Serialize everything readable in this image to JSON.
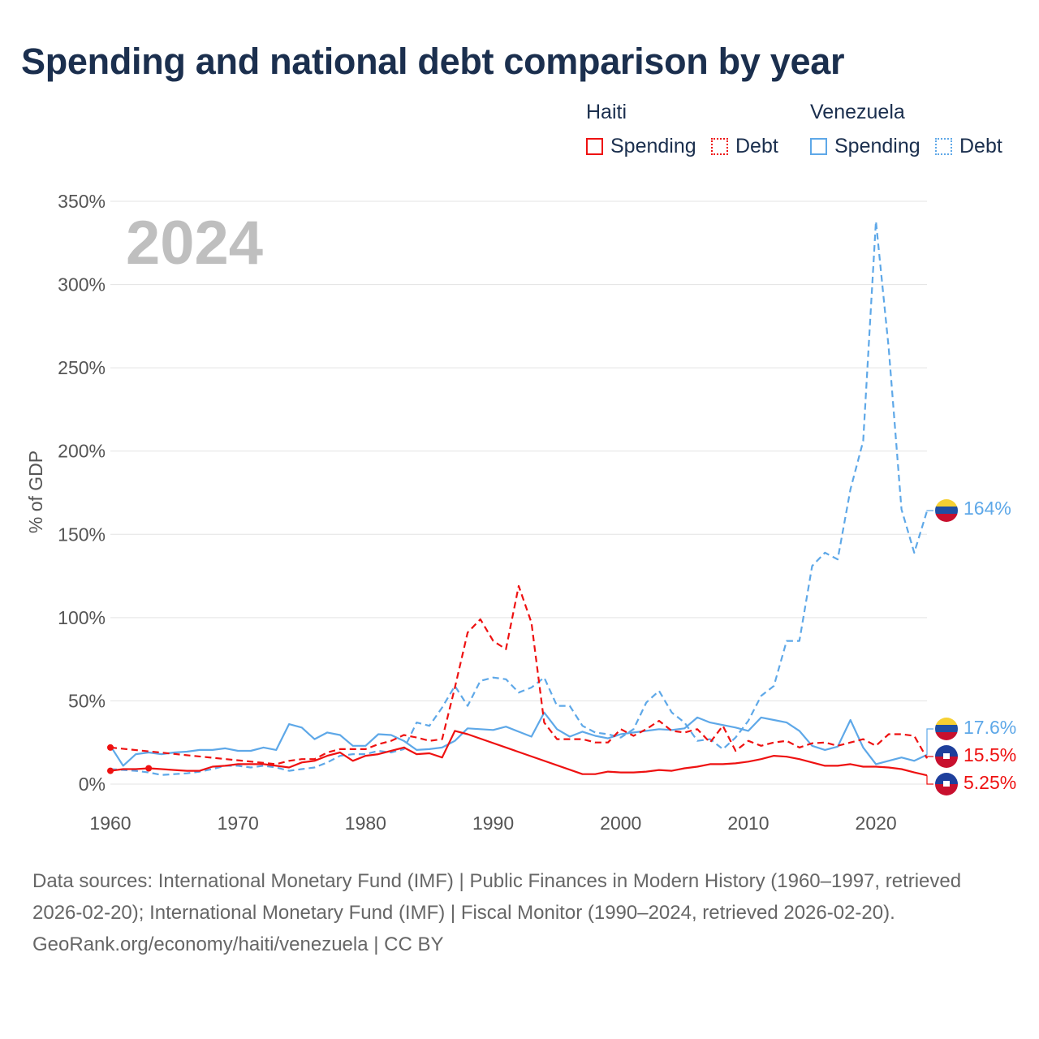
{
  "title": "Spending and national debt comparison by year",
  "legend": {
    "groups": [
      {
        "country": "Haiti",
        "color": "#ee1111",
        "items": [
          "Spending",
          "Debt"
        ]
      },
      {
        "country": "Venezuela",
        "color": "#5ea8e8",
        "items": [
          "Spending",
          "Debt"
        ]
      }
    ]
  },
  "year_watermark": "2024",
  "footer": {
    "sources": "Data sources: International Monetary Fund (IMF) | Public Finances in Modern History (1960–1997, retrieved 2026-02-20); International Monetary Fund (IMF) | Fiscal Monitor (1990–2024, retrieved 2026-02-20).",
    "credit": "GeoRank.org/economy/haiti/venezuela | CC BY"
  },
  "end_labels": {
    "venezuela_debt": "164%",
    "venezuela_spending": "17.6%",
    "haiti_debt": "15.5%",
    "haiti_spending": "5.25%"
  },
  "chart_data": {
    "type": "line",
    "title": "Spending and national debt comparison by year",
    "xlabel": "",
    "ylabel": "% of GDP",
    "xlim": [
      1960,
      2024
    ],
    "ylim": [
      0,
      350
    ],
    "x_ticks": [
      1960,
      1970,
      1980,
      1990,
      2000,
      2010,
      2020
    ],
    "y_ticks": [
      0,
      50,
      100,
      150,
      200,
      250,
      300,
      350
    ],
    "y_tick_labels": [
      "0%",
      "50%",
      "100%",
      "150%",
      "200%",
      "250%",
      "300%",
      "350%"
    ],
    "grid": "horizontal",
    "legend_position": "top-right",
    "series": [
      {
        "name": "Haiti Spending",
        "country": "Haiti",
        "measure": "Spending",
        "color": "#ee1111",
        "dashed": false,
        "points": [
          [
            1960,
            8
          ],
          [
            1961,
            9
          ],
          [
            1962,
            9
          ],
          [
            1963,
            9.5
          ],
          [
            1964,
            9
          ],
          [
            1965,
            8.5
          ],
          [
            1966,
            8
          ],
          [
            1967,
            8
          ],
          [
            1968,
            10.5
          ],
          [
            1969,
            11
          ],
          [
            1970,
            12
          ],
          [
            1971,
            12
          ],
          [
            1972,
            12
          ],
          [
            1973,
            11
          ],
          [
            1974,
            10
          ],
          [
            1975,
            13
          ],
          [
            1976,
            14
          ],
          [
            1977,
            17
          ],
          [
            1978,
            19
          ],
          [
            1979,
            14
          ],
          [
            1980,
            17
          ],
          [
            1981,
            18
          ],
          [
            1982,
            20
          ],
          [
            1983,
            22
          ],
          [
            1984,
            18
          ],
          [
            1985,
            18.5
          ],
          [
            1986,
            16
          ],
          [
            1987,
            32
          ],
          [
            1988,
            30
          ],
          [
            1997,
            6
          ],
          [
            1998,
            6
          ],
          [
            1999,
            7.5
          ],
          [
            2000,
            7
          ],
          [
            2001,
            7
          ],
          [
            2002,
            7.5
          ],
          [
            2003,
            8.5
          ],
          [
            2004,
            8
          ],
          [
            2005,
            9.5
          ],
          [
            2006,
            10.5
          ],
          [
            2007,
            12
          ],
          [
            2008,
            12
          ],
          [
            2009,
            12.5
          ],
          [
            2010,
            13.5
          ],
          [
            2011,
            15
          ],
          [
            2012,
            17
          ],
          [
            2013,
            16.5
          ],
          [
            2014,
            15
          ],
          [
            2015,
            13
          ],
          [
            2016,
            11
          ],
          [
            2017,
            11
          ],
          [
            2018,
            12
          ],
          [
            2019,
            10.5
          ],
          [
            2020,
            10.5
          ],
          [
            2021,
            10
          ],
          [
            2022,
            9
          ],
          [
            2023,
            7
          ],
          [
            2024,
            5.25
          ]
        ]
      },
      {
        "name": "Haiti Debt",
        "country": "Haiti",
        "measure": "Debt",
        "color": "#ee1111",
        "dashed": true,
        "points": [
          [
            1960,
            22
          ],
          [
            1973,
            12
          ],
          [
            1974,
            14
          ],
          [
            1975,
            15
          ],
          [
            1976,
            15
          ],
          [
            1977,
            19
          ],
          [
            1978,
            21
          ],
          [
            1979,
            21
          ],
          [
            1980,
            21
          ],
          [
            1981,
            24
          ],
          [
            1982,
            26
          ],
          [
            1983,
            29.5
          ],
          [
            1984,
            28
          ],
          [
            1985,
            26
          ],
          [
            1986,
            27
          ],
          [
            1987,
            58
          ],
          [
            1988,
            91
          ],
          [
            1989,
            99
          ],
          [
            1990,
            86
          ],
          [
            1991,
            81
          ],
          [
            1992,
            119
          ],
          [
            1993,
            97
          ],
          [
            1994,
            37
          ],
          [
            1995,
            27
          ],
          [
            1996,
            27
          ],
          [
            1997,
            27
          ],
          [
            1998,
            25
          ],
          [
            1999,
            25
          ],
          [
            2000,
            33
          ],
          [
            2001,
            29
          ],
          [
            2002,
            33
          ],
          [
            2003,
            38
          ],
          [
            2004,
            32
          ],
          [
            2005,
            31
          ],
          [
            2006,
            33
          ],
          [
            2007,
            25
          ],
          [
            2008,
            35
          ],
          [
            2009,
            20
          ],
          [
            2010,
            26
          ],
          [
            2011,
            23
          ],
          [
            2012,
            25
          ],
          [
            2013,
            26
          ],
          [
            2014,
            22
          ],
          [
            2015,
            24.5
          ],
          [
            2016,
            25
          ],
          [
            2017,
            23
          ],
          [
            2018,
            25
          ],
          [
            2019,
            27
          ],
          [
            2020,
            23
          ],
          [
            2021,
            30
          ],
          [
            2022,
            30
          ],
          [
            2023,
            29
          ],
          [
            2024,
            15.5
          ]
        ]
      },
      {
        "name": "Venezuela Spending",
        "country": "Venezuela",
        "measure": "Spending",
        "color": "#5ea8e8",
        "dashed": false,
        "points": [
          [
            1960,
            23
          ],
          [
            1961,
            11
          ],
          [
            1962,
            18
          ],
          [
            1963,
            19
          ],
          [
            1964,
            18
          ],
          [
            1965,
            19
          ],
          [
            1966,
            19.5
          ],
          [
            1967,
            20.5
          ],
          [
            1968,
            20.5
          ],
          [
            1969,
            21.5
          ],
          [
            1970,
            20
          ],
          [
            1971,
            20
          ],
          [
            1972,
            22
          ],
          [
            1973,
            20.5
          ],
          [
            1974,
            36
          ],
          [
            1975,
            34
          ],
          [
            1976,
            27
          ],
          [
            1977,
            31
          ],
          [
            1978,
            29.5
          ],
          [
            1979,
            23
          ],
          [
            1980,
            23
          ],
          [
            1981,
            30
          ],
          [
            1982,
            29.5
          ],
          [
            1983,
            26
          ],
          [
            1984,
            20.5
          ],
          [
            1985,
            21
          ],
          [
            1986,
            22
          ],
          [
            1987,
            26
          ],
          [
            1988,
            33.5
          ],
          [
            1989,
            33
          ],
          [
            1990,
            32.5
          ],
          [
            1991,
            34.5
          ],
          [
            1992,
            31.5
          ],
          [
            1993,
            28.5
          ],
          [
            1994,
            43
          ],
          [
            1995,
            33
          ],
          [
            1996,
            28.5
          ],
          [
            1997,
            31.5
          ],
          [
            1998,
            29
          ],
          [
            1999,
            27.5
          ],
          [
            2000,
            30
          ],
          [
            2001,
            31
          ],
          [
            2002,
            32
          ],
          [
            2003,
            33
          ],
          [
            2004,
            32.5
          ],
          [
            2005,
            33.5
          ],
          [
            2006,
            40
          ],
          [
            2007,
            37
          ],
          [
            2008,
            35.5
          ],
          [
            2009,
            34
          ],
          [
            2010,
            32
          ],
          [
            2011,
            40
          ],
          [
            2012,
            38.5
          ],
          [
            2013,
            37
          ],
          [
            2014,
            32
          ],
          [
            2015,
            23
          ],
          [
            2016,
            20.5
          ],
          [
            2017,
            22.5
          ],
          [
            2018,
            38.5
          ],
          [
            2019,
            22
          ],
          [
            2020,
            12
          ],
          [
            2021,
            14
          ],
          [
            2022,
            16
          ],
          [
            2023,
            14
          ],
          [
            2024,
            17.6
          ]
        ]
      },
      {
        "name": "Venezuela Debt",
        "country": "Venezuela",
        "measure": "Debt",
        "color": "#5ea8e8",
        "dashed": true,
        "points": [
          [
            1960,
            9
          ],
          [
            1962,
            8
          ],
          [
            1963,
            7
          ],
          [
            1964,
            5.5
          ],
          [
            1965,
            6
          ],
          [
            1966,
            6.5
          ],
          [
            1967,
            7.5
          ],
          [
            1968,
            9
          ],
          [
            1969,
            11
          ],
          [
            1970,
            11
          ],
          [
            1971,
            10
          ],
          [
            1972,
            11
          ],
          [
            1973,
            10
          ],
          [
            1974,
            8
          ],
          [
            1975,
            9
          ],
          [
            1976,
            10
          ],
          [
            1977,
            13
          ],
          [
            1978,
            17
          ],
          [
            1979,
            18
          ],
          [
            1980,
            18
          ],
          [
            1981,
            20
          ],
          [
            1982,
            19
          ],
          [
            1983,
            21
          ],
          [
            1984,
            37
          ],
          [
            1985,
            35
          ],
          [
            1986,
            46
          ],
          [
            1987,
            59
          ],
          [
            1988,
            47
          ],
          [
            1989,
            62
          ],
          [
            1990,
            64
          ],
          [
            1991,
            63
          ],
          [
            1992,
            55
          ],
          [
            1993,
            58
          ],
          [
            1994,
            64
          ],
          [
            1995,
            47
          ],
          [
            1996,
            47
          ],
          [
            1997,
            35
          ],
          [
            1998,
            31
          ],
          [
            1999,
            30
          ],
          [
            2000,
            28
          ],
          [
            2001,
            33
          ],
          [
            2002,
            49
          ],
          [
            2003,
            56
          ],
          [
            2004,
            43
          ],
          [
            2005,
            37
          ],
          [
            2006,
            26
          ],
          [
            2007,
            27
          ],
          [
            2008,
            21
          ],
          [
            2009,
            28
          ],
          [
            2010,
            38
          ],
          [
            2011,
            53
          ],
          [
            2012,
            59
          ],
          [
            2013,
            86
          ],
          [
            2014,
            86
          ],
          [
            2015,
            131
          ],
          [
            2016,
            139
          ],
          [
            2017,
            135
          ],
          [
            2018,
            177
          ],
          [
            2019,
            206
          ],
          [
            2020,
            338
          ],
          [
            2021,
            262
          ],
          [
            2022,
            165
          ],
          [
            2023,
            139
          ],
          [
            2024,
            164
          ]
        ]
      }
    ]
  }
}
